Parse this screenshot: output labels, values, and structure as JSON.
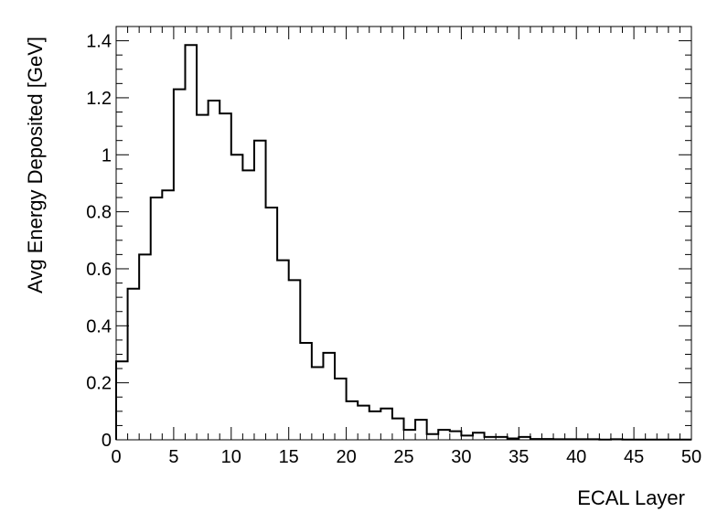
{
  "chart_data": {
    "type": "histogram",
    "title": "",
    "xlabel": "ECAL Layer",
    "ylabel": "Avg Energy Deposited [GeV]",
    "xlim": [
      0,
      50
    ],
    "ylim": [
      0,
      1.45
    ],
    "x_ticks": [
      "0",
      "5",
      "10",
      "15",
      "20",
      "25",
      "30",
      "35",
      "40",
      "45",
      "50"
    ],
    "y_ticks": [
      "0",
      "0.2",
      "0.4",
      "0.6",
      "0.8",
      "1",
      "1.2",
      "1.4"
    ],
    "bin_width": 1,
    "bin_edges_start": 0,
    "values": [
      0.275,
      0.53,
      0.65,
      0.85,
      0.875,
      1.23,
      1.385,
      1.14,
      1.19,
      1.145,
      1.0,
      0.945,
      1.05,
      0.815,
      0.63,
      0.56,
      0.34,
      0.255,
      0.305,
      0.215,
      0.135,
      0.12,
      0.1,
      0.11,
      0.075,
      0.035,
      0.07,
      0.02,
      0.035,
      0.03,
      0.015,
      0.025,
      0.01,
      0.01,
      0.005,
      0.01,
      0.003,
      0.003,
      0.002,
      0.002,
      0.002,
      0.002,
      0.001,
      0.002,
      0.001,
      0.001,
      0.001,
      0.001,
      0.001,
      0.001
    ],
    "grid": false,
    "legend": "none"
  }
}
